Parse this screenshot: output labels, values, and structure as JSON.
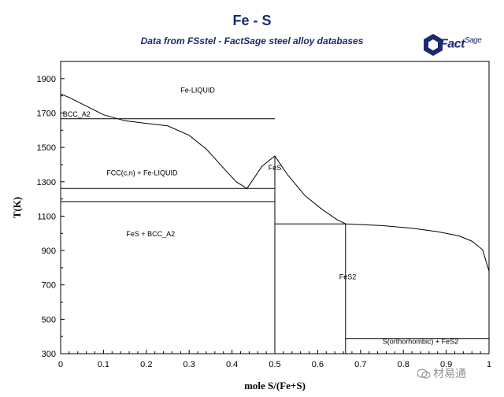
{
  "chart_data": {
    "type": "line",
    "title": "Fe - S",
    "subtitle": "Data from FSstel - FactSage steel alloy databases",
    "xlabel": "mole S/(Fe+S)",
    "ylabel": "T(K)",
    "xlim": [
      0,
      1
    ],
    "ylim": [
      300,
      2000
    ],
    "xticks": [
      0,
      0.1,
      0.2,
      0.3,
      0.4,
      0.5,
      0.6,
      0.7,
      0.8,
      0.9,
      1
    ],
    "xtick_labels": [
      "0",
      "0.1",
      "0.2",
      "0.3",
      "0.4",
      "0.5",
      "0.6",
      "0.7",
      "0.8",
      "0.9",
      "1"
    ],
    "yticks": [
      300,
      500,
      700,
      900,
      1100,
      1300,
      1500,
      1700,
      1900
    ],
    "ytick_labels": [
      "300",
      "500",
      "700",
      "900",
      "1100",
      "1300",
      "1500",
      "1700",
      "1900"
    ],
    "grid": false,
    "series": [
      {
        "x": [
          0,
          0.02,
          0.06,
          0.1,
          0.15,
          0.2,
          0.25,
          0.3,
          0.34,
          0.38,
          0.41,
          0.435
        ],
        "y": [
          1811,
          1790,
          1740,
          1690,
          1655,
          1640,
          1625,
          1570,
          1490,
          1380,
          1300,
          1261
        ]
      },
      {
        "x": [
          0.435,
          0.47,
          0.5,
          0.53,
          0.57,
          0.61,
          0.645,
          0.665
        ],
        "y": [
          1261,
          1390,
          1450,
          1340,
          1220,
          1140,
          1080,
          1055
        ]
      },
      {
        "x": [
          0.665,
          0.75,
          0.82,
          0.88,
          0.93,
          0.96,
          0.985,
          1.0
        ],
        "y": [
          1055,
          1045,
          1030,
          1010,
          985,
          955,
          905,
          780
        ]
      },
      {
        "x": [
          0,
          0.5
        ],
        "y": [
          1667,
          1667
        ]
      },
      {
        "x": [
          0,
          0.5
        ],
        "y": [
          1261,
          1261
        ]
      },
      {
        "x": [
          0,
          0.5
        ],
        "y": [
          1185,
          1185
        ]
      },
      {
        "x": [
          0.5,
          0.5
        ],
        "y": [
          300,
          1450
        ]
      },
      {
        "x": [
          0.5,
          0.665
        ],
        "y": [
          1055,
          1055
        ]
      },
      {
        "x": [
          0.665,
          0.665
        ],
        "y": [
          300,
          1055
        ]
      },
      {
        "x": [
          0.665,
          1.0
        ],
        "y": [
          388,
          388
        ]
      },
      {
        "x": [
          0,
          0
        ],
        "y": [
          1667,
          1811
        ]
      }
    ],
    "annotations": [
      {
        "text": "Fe-LIQUID",
        "x": 0.32,
        "y": 1820
      },
      {
        "text": "BCC_A2",
        "x": 0.005,
        "y": 1680
      },
      {
        "text": "FCC(c,n) + Fe-LIQUID",
        "x": 0.19,
        "y": 1338
      },
      {
        "text": "FeS",
        "x": 0.5,
        "y": 1368
      },
      {
        "text": "FeS + BCC_A2",
        "x": 0.21,
        "y": 982
      },
      {
        "text": "FeS2",
        "x": 0.67,
        "y": 733
      },
      {
        "text": "S(orthorhombic) + FeS2",
        "x": 0.84,
        "y": 358
      }
    ]
  },
  "logo": {
    "text": "Fact",
    "text_small": "Sage"
  },
  "watermark": {
    "text": "材易通"
  }
}
